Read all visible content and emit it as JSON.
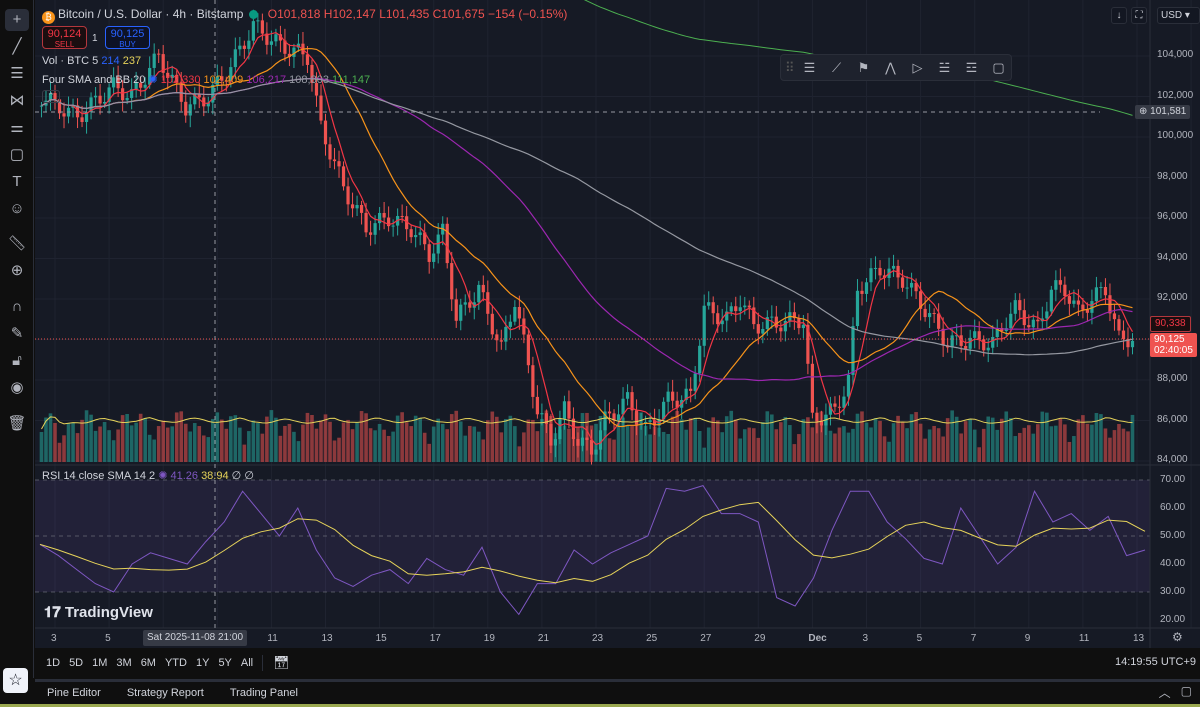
{
  "symbol": {
    "title": "Bitcoin / U.S. Dollar · 4h · Bitstamp",
    "open": "O101,818",
    "high": "H102,147",
    "low": "L101,435",
    "close": "C101,675",
    "change": "−154 (−0.15%)",
    "coin_glyph": "₿"
  },
  "trade": {
    "sell_price": "90,124",
    "sell_label": "SELL",
    "buy_price": "90,125",
    "buy_label": "BUY",
    "mid": "1"
  },
  "volume": {
    "label": "Vol · BTC 5",
    "v1": "214",
    "v2": "237"
  },
  "sma": {
    "label": "Four SMA and BB 20",
    "values": [
      "102,330",
      "102,409",
      "106,217",
      "108,803",
      "111,147"
    ],
    "colors": [
      "#f23645",
      "#f7931a",
      "#9c27b0",
      "#9598a1",
      "#4caf50"
    ]
  },
  "rsi": {
    "label": "RSI 14 close SMA 14 2",
    "value": "41.26",
    "sma": "38.94",
    "na1": "∅",
    "na2": "∅"
  },
  "toolbar_right": {
    "download": "↓",
    "fullscreen": "⛶",
    "currency": "USD ▾"
  },
  "price_axis": [
    "104,000",
    "102,000",
    "100,000",
    "98,000",
    "96,000",
    "94,000",
    "92,000",
    "88,000",
    "86,000",
    "84,000"
  ],
  "crosshair_price": "101,581",
  "sma_price_label": "90,338",
  "last_price": "90,125",
  "countdown": "02:40:05",
  "rsi_axis": [
    "70.00",
    "60.00",
    "50.00",
    "40.00",
    "30.00",
    "20.00"
  ],
  "time_axis": [
    "3",
    "5",
    "11",
    "13",
    "15",
    "17",
    "19",
    "21",
    "23",
    "25",
    "27",
    "29",
    "Dec",
    "3",
    "5",
    "7",
    "9",
    "11",
    "13"
  ],
  "crosshair_time": "Sat 2025-11-08   21:00",
  "watermark": "TradingView",
  "ranges": [
    "1D",
    "5D",
    "1M",
    "3M",
    "6M",
    "YTD",
    "1Y",
    "5Y",
    "All"
  ],
  "clock": "14:19:55 UTC+9",
  "bottom_tabs": [
    "Pine Editor",
    "Strategy Report",
    "Trading Panel"
  ],
  "colors": {
    "up": "#26a69a",
    "down": "#ef5350",
    "bg": "#161a25",
    "rsi": "#7e57c2",
    "rsi_sma": "#e6d35a"
  },
  "chart_data": {
    "type": "candlestick",
    "interval": "4h",
    "x_range": [
      "2025-11-02",
      "2025-12-14"
    ],
    "ylim": [
      83500,
      106000
    ],
    "close_path": [
      [
        "11-02 12:00",
        102000
      ],
      [
        "11-03 20:00",
        101000
      ],
      [
        "11-05 04:00",
        102500
      ],
      [
        "11-05 20:00",
        102000
      ],
      [
        "11-06 20:00",
        104000
      ],
      [
        "11-07 20:00",
        101500
      ],
      [
        "11-08 16:00",
        102000
      ],
      [
        "11-09 12:00",
        103500
      ],
      [
        "11-10 08:00",
        105500
      ],
      [
        "11-11 08:00",
        104500
      ],
      [
        "11-12 08:00",
        104000
      ],
      [
        "11-12 20:00",
        100500
      ],
      [
        "11-13 16:00",
        97500
      ],
      [
        "11-14 12:00",
        95500
      ],
      [
        "11-15 08:00",
        96000
      ],
      [
        "11-16 04:00",
        95500
      ],
      [
        "11-16 20:00",
        94200
      ],
      [
        "11-17 08:00",
        95300
      ],
      [
        "11-17 20:00",
        91000
      ],
      [
        "11-18 16:00",
        92500
      ],
      [
        "11-19 12:00",
        89500
      ],
      [
        "11-20 00:00",
        92000
      ],
      [
        "11-20 20:00",
        86500
      ],
      [
        "11-21 08:00",
        85000
      ],
      [
        "11-21 20:00",
        86500
      ],
      [
        "11-22 08:00",
        85000
      ],
      [
        "11-22 20:00",
        84500
      ],
      [
        "11-23 08:00",
        86000
      ],
      [
        "11-24 04:00",
        87000
      ],
      [
        "11-24 20:00",
        85500
      ],
      [
        "11-25 16:00",
        87000
      ],
      [
        "11-26 12:00",
        87200
      ],
      [
        "11-27 00:00",
        91500
      ],
      [
        "11-27 20:00",
        91000
      ],
      [
        "11-28 08:00",
        92000
      ],
      [
        "11-28 20:00",
        90700
      ],
      [
        "11-29 16:00",
        90800
      ],
      [
        "11-30 16:00",
        91000
      ],
      [
        "12-01 00:00",
        86000
      ],
      [
        "12-01 20:00",
        86500
      ],
      [
        "12-02 08:00",
        88000
      ],
      [
        "12-02 16:00",
        92500
      ],
      [
        "12-03 12:00",
        93500
      ],
      [
        "12-04 08:00",
        93000
      ],
      [
        "12-05 04:00",
        91500
      ],
      [
        "12-05 16:00",
        90500
      ],
      [
        "12-06 00:00",
        89800
      ],
      [
        "12-06 20:00",
        90000
      ],
      [
        "12-07 16:00",
        89800
      ],
      [
        "12-08 04:00",
        91000
      ],
      [
        "12-08 12:00",
        91500
      ],
      [
        "12-09 08:00",
        90500
      ],
      [
        "12-09 20:00",
        92500
      ],
      [
        "12-10 08:00",
        92500
      ],
      [
        "12-10 20:00",
        91300
      ],
      [
        "12-11 08:00",
        92000
      ],
      [
        "12-11 20:00",
        92500
      ],
      [
        "12-12 08:00",
        90000
      ],
      [
        "12-13 00:00",
        90125
      ]
    ],
    "rsi_path": [
      47,
      43,
      38,
      33,
      30,
      40,
      44,
      42,
      40,
      48,
      55,
      66,
      58,
      50,
      60,
      45,
      35,
      32,
      36,
      38,
      33,
      42,
      38,
      36,
      46,
      30,
      22,
      33,
      33,
      45,
      40,
      44,
      47,
      50,
      67,
      66,
      68,
      58,
      58,
      55,
      28,
      25,
      35,
      52,
      66,
      66,
      55,
      49,
      42,
      40,
      60,
      50,
      40,
      46,
      66,
      55,
      58,
      52,
      57,
      43,
      45
    ],
    "rsi_ylim": [
      17,
      73
    ]
  }
}
